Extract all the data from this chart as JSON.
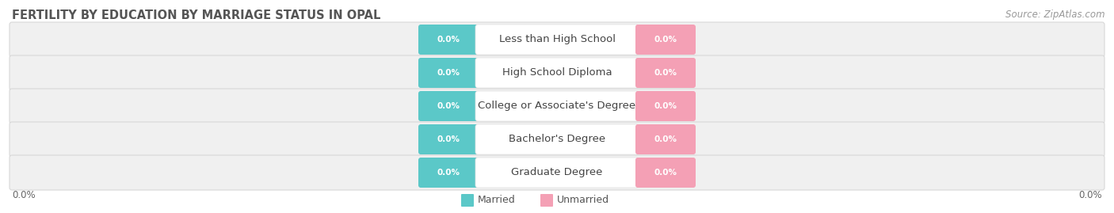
{
  "title": "FERTILITY BY EDUCATION BY MARRIAGE STATUS IN OPAL",
  "source": "Source: ZipAtlas.com",
  "categories": [
    "Less than High School",
    "High School Diploma",
    "College or Associate's Degree",
    "Bachelor's Degree",
    "Graduate Degree"
  ],
  "married_values": [
    0.0,
    0.0,
    0.0,
    0.0,
    0.0
  ],
  "unmarried_values": [
    0.0,
    0.0,
    0.0,
    0.0,
    0.0
  ],
  "married_color": "#5bc8c8",
  "unmarried_color": "#f4a0b5",
  "row_bg_color": "#f0f0f0",
  "row_border_color": "#d8d8d8",
  "title_fontsize": 10.5,
  "source_fontsize": 8.5,
  "tick_fontsize": 8.5,
  "label_fontsize": 7.5,
  "category_fontsize": 9.5,
  "legend_fontsize": 9,
  "left_tick": "0.0%",
  "right_tick": "0.0%",
  "bar_bg_left_color": "#e8e8e8",
  "bar_bg_right_color": "#e8e8e8"
}
